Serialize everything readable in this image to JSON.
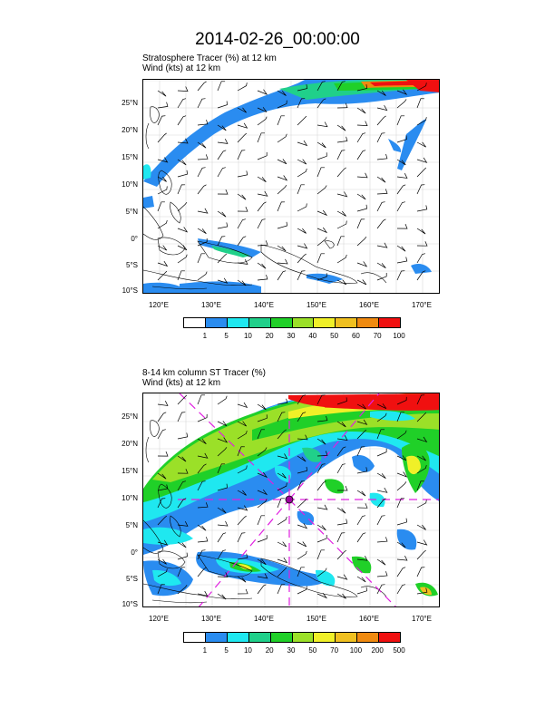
{
  "title": "2014-02-26_00:00:00",
  "panel1": {
    "line1": "Stratosphere Tracer   (%)     at   12 km",
    "line2": "Wind   (kts)     at   12 km",
    "lat_labels": [
      "25°N",
      "20°N",
      "15°N",
      "10°N",
      "5°N",
      "0°",
      "5°S",
      "10°S"
    ],
    "lon_labels": [
      "120°E",
      "130°E",
      "140°E",
      "150°E",
      "160°E",
      "170°E"
    ],
    "colorbar": {
      "colors": [
        "#ffffff",
        "#2a8cf0",
        "#1fe8f0",
        "#20d08a",
        "#20d028",
        "#9be028",
        "#f0f028",
        "#f0c020",
        "#f08a10",
        "#f01010"
      ],
      "labels": [
        "1",
        "5",
        "10",
        "20",
        "30",
        "40",
        "50",
        "60",
        "70",
        "100"
      ]
    }
  },
  "panel2": {
    "line1": "8-14 km column ST Tracer    (%)",
    "line2": "Wind   (kts)     at   12 km",
    "lat_labels": [
      "25°N",
      "20°N",
      "15°N",
      "10°N",
      "5°N",
      "0°",
      "5°S",
      "10°S"
    ],
    "lon_labels": [
      "120°E",
      "130°E",
      "140°E",
      "150°E",
      "160°E",
      "170°E"
    ],
    "colorbar": {
      "colors": [
        "#ffffff",
        "#2a8cf0",
        "#1fe8f0",
        "#20d08a",
        "#20d028",
        "#9be028",
        "#f0f028",
        "#f0c020",
        "#f08a10",
        "#f01010"
      ],
      "labels": [
        "1",
        "5",
        "10",
        "20",
        "30",
        "50",
        "70",
        "100",
        "200",
        "500"
      ]
    }
  }
}
